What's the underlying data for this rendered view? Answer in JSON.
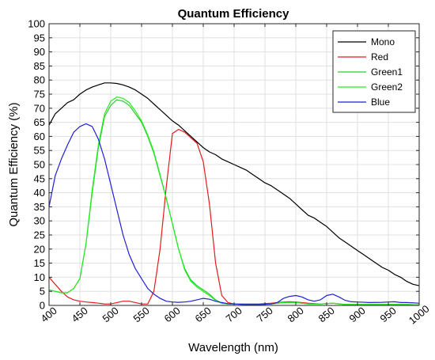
{
  "chart_data": {
    "type": "line",
    "title": "Quantum Efficiency",
    "xlabel": "Wavelength (nm)",
    "ylabel": "Quantum Efficiency (%)",
    "xlim": [
      400,
      1000
    ],
    "ylim": [
      0,
      100
    ],
    "xticks": [
      400,
      450,
      500,
      550,
      600,
      650,
      700,
      750,
      800,
      850,
      900,
      950,
      1000
    ],
    "yticks": [
      0,
      5,
      10,
      15,
      20,
      25,
      30,
      35,
      40,
      45,
      50,
      55,
      60,
      65,
      70,
      75,
      80,
      85,
      90,
      95,
      100
    ],
    "grid": true,
    "legend_position": "top-right",
    "series": [
      {
        "name": "Mono",
        "color": "#000000",
        "points": [
          [
            400,
            64
          ],
          [
            410,
            68
          ],
          [
            420,
            70
          ],
          [
            430,
            72
          ],
          [
            440,
            73
          ],
          [
            450,
            75
          ],
          [
            460,
            76.5
          ],
          [
            470,
            77.5
          ],
          [
            480,
            78.3
          ],
          [
            490,
            79
          ],
          [
            500,
            79
          ],
          [
            510,
            78.8
          ],
          [
            520,
            78.3
          ],
          [
            530,
            77.5
          ],
          [
            540,
            76.5
          ],
          [
            550,
            75
          ],
          [
            560,
            73.5
          ],
          [
            570,
            71.5
          ],
          [
            580,
            69.5
          ],
          [
            590,
            67.5
          ],
          [
            600,
            65.5
          ],
          [
            610,
            64
          ],
          [
            620,
            62
          ],
          [
            630,
            60
          ],
          [
            640,
            58
          ],
          [
            650,
            56
          ],
          [
            660,
            54.5
          ],
          [
            670,
            53.5
          ],
          [
            680,
            52
          ],
          [
            690,
            51
          ],
          [
            700,
            50
          ],
          [
            710,
            49
          ],
          [
            720,
            48
          ],
          [
            730,
            46.5
          ],
          [
            740,
            45
          ],
          [
            750,
            43.5
          ],
          [
            760,
            42.5
          ],
          [
            770,
            41
          ],
          [
            780,
            39.5
          ],
          [
            790,
            38
          ],
          [
            800,
            36
          ],
          [
            810,
            34
          ],
          [
            820,
            32
          ],
          [
            830,
            31
          ],
          [
            840,
            29.5
          ],
          [
            850,
            28
          ],
          [
            860,
            26
          ],
          [
            870,
            24
          ],
          [
            880,
            22.5
          ],
          [
            890,
            21
          ],
          [
            900,
            19.5
          ],
          [
            910,
            18
          ],
          [
            920,
            16.5
          ],
          [
            930,
            15
          ],
          [
            940,
            13.5
          ],
          [
            950,
            12.5
          ],
          [
            960,
            11
          ],
          [
            970,
            10
          ],
          [
            980,
            8.5
          ],
          [
            990,
            7.5
          ],
          [
            1000,
            7
          ]
        ]
      },
      {
        "name": "Red",
        "color": "#e41a1c",
        "points": [
          [
            400,
            10
          ],
          [
            410,
            7.5
          ],
          [
            420,
            5
          ],
          [
            430,
            3
          ],
          [
            440,
            2
          ],
          [
            450,
            1.5
          ],
          [
            460,
            1.2
          ],
          [
            470,
            1
          ],
          [
            480,
            0.8
          ],
          [
            490,
            0.5
          ],
          [
            500,
            0.5
          ],
          [
            510,
            1
          ],
          [
            520,
            1.5
          ],
          [
            530,
            1.5
          ],
          [
            540,
            1
          ],
          [
            550,
            0.5
          ],
          [
            560,
            0.5
          ],
          [
            570,
            5
          ],
          [
            580,
            20
          ],
          [
            590,
            42
          ],
          [
            600,
            61
          ],
          [
            610,
            62.5
          ],
          [
            620,
            61.5
          ],
          [
            630,
            59.5
          ],
          [
            640,
            57.5
          ],
          [
            650,
            51
          ],
          [
            660,
            36
          ],
          [
            670,
            15
          ],
          [
            680,
            3.5
          ],
          [
            690,
            1
          ],
          [
            700,
            0.5
          ],
          [
            720,
            0.5
          ],
          [
            740,
            0.5
          ],
          [
            760,
            0.8
          ],
          [
            780,
            1.2
          ],
          [
            790,
            1.3
          ],
          [
            800,
            1.2
          ],
          [
            820,
            0.8
          ],
          [
            840,
            0.5
          ],
          [
            860,
            0.8
          ],
          [
            870,
            0.5
          ],
          [
            880,
            0.3
          ],
          [
            900,
            0.3
          ],
          [
            920,
            0.3
          ],
          [
            940,
            0.3
          ],
          [
            960,
            0.3
          ],
          [
            980,
            0.3
          ],
          [
            1000,
            0.2
          ]
        ]
      },
      {
        "name": "Green1",
        "color": "#2ecc2e",
        "points": [
          [
            400,
            5.5
          ],
          [
            410,
            5
          ],
          [
            420,
            4.5
          ],
          [
            430,
            4.5
          ],
          [
            440,
            6
          ],
          [
            450,
            9.5
          ],
          [
            460,
            22
          ],
          [
            470,
            40
          ],
          [
            480,
            56
          ],
          [
            490,
            67
          ],
          [
            500,
            71
          ],
          [
            510,
            73
          ],
          [
            520,
            72.5
          ],
          [
            530,
            71
          ],
          [
            540,
            68
          ],
          [
            550,
            65
          ],
          [
            560,
            60
          ],
          [
            570,
            54
          ],
          [
            580,
            46
          ],
          [
            590,
            38
          ],
          [
            600,
            29
          ],
          [
            610,
            20
          ],
          [
            620,
            13
          ],
          [
            630,
            9
          ],
          [
            640,
            7
          ],
          [
            650,
            5.5
          ],
          [
            660,
            4
          ],
          [
            670,
            2
          ],
          [
            680,
            0.8
          ],
          [
            690,
            0.5
          ],
          [
            700,
            0.5
          ],
          [
            720,
            0.3
          ],
          [
            740,
            0.3
          ],
          [
            760,
            0.5
          ],
          [
            780,
            1
          ],
          [
            790,
            1
          ],
          [
            800,
            1
          ],
          [
            820,
            0.5
          ],
          [
            840,
            0.5
          ],
          [
            860,
            0.8
          ],
          [
            880,
            0.3
          ],
          [
            900,
            0.3
          ],
          [
            920,
            0.3
          ],
          [
            940,
            0.3
          ],
          [
            960,
            0.3
          ],
          [
            980,
            0.3
          ],
          [
            1000,
            0.2
          ]
        ]
      },
      {
        "name": "Green2",
        "color": "#22ee22",
        "points": [
          [
            400,
            5.5
          ],
          [
            410,
            5
          ],
          [
            420,
            4.5
          ],
          [
            430,
            4.5
          ],
          [
            440,
            6
          ],
          [
            450,
            9.5
          ],
          [
            460,
            22
          ],
          [
            470,
            41
          ],
          [
            480,
            57
          ],
          [
            490,
            68
          ],
          [
            500,
            72.5
          ],
          [
            510,
            74
          ],
          [
            520,
            73.5
          ],
          [
            530,
            72
          ],
          [
            540,
            69
          ],
          [
            550,
            65.5
          ],
          [
            560,
            60.5
          ],
          [
            570,
            54.5
          ],
          [
            580,
            46.5
          ],
          [
            590,
            38
          ],
          [
            600,
            29
          ],
          [
            610,
            20
          ],
          [
            620,
            12.5
          ],
          [
            630,
            8.5
          ],
          [
            640,
            6.5
          ],
          [
            650,
            5
          ],
          [
            660,
            3.5
          ],
          [
            670,
            1.8
          ],
          [
            680,
            0.7
          ],
          [
            690,
            0.5
          ],
          [
            700,
            0.5
          ],
          [
            720,
            0.3
          ],
          [
            740,
            0.3
          ],
          [
            760,
            0.5
          ],
          [
            780,
            1
          ],
          [
            790,
            1
          ],
          [
            800,
            1
          ],
          [
            820,
            0.5
          ],
          [
            840,
            0.5
          ],
          [
            860,
            0.8
          ],
          [
            880,
            0.3
          ],
          [
            900,
            0.3
          ],
          [
            920,
            0.3
          ],
          [
            940,
            0.3
          ],
          [
            960,
            0.3
          ],
          [
            980,
            0.3
          ],
          [
            1000,
            0.2
          ]
        ]
      },
      {
        "name": "Blue",
        "color": "#1f1fd6",
        "points": [
          [
            400,
            35
          ],
          [
            410,
            46
          ],
          [
            420,
            52
          ],
          [
            430,
            57
          ],
          [
            440,
            61.5
          ],
          [
            450,
            63.5
          ],
          [
            460,
            64.5
          ],
          [
            470,
            63.5
          ],
          [
            480,
            59
          ],
          [
            490,
            52
          ],
          [
            500,
            43
          ],
          [
            510,
            34
          ],
          [
            520,
            25
          ],
          [
            530,
            18
          ],
          [
            540,
            13
          ],
          [
            550,
            9.5
          ],
          [
            560,
            6
          ],
          [
            570,
            4
          ],
          [
            580,
            2.5
          ],
          [
            590,
            1.5
          ],
          [
            600,
            1.2
          ],
          [
            610,
            1.1
          ],
          [
            620,
            1.2
          ],
          [
            630,
            1.5
          ],
          [
            640,
            2
          ],
          [
            650,
            2.5
          ],
          [
            660,
            2.2
          ],
          [
            670,
            1.5
          ],
          [
            680,
            1
          ],
          [
            690,
            0.6
          ],
          [
            700,
            0.5
          ],
          [
            710,
            0.4
          ],
          [
            720,
            0.3
          ],
          [
            740,
            0.3
          ],
          [
            760,
            0.5
          ],
          [
            770,
            1
          ],
          [
            780,
            2.5
          ],
          [
            790,
            3.2
          ],
          [
            800,
            3.5
          ],
          [
            810,
            3
          ],
          [
            820,
            2
          ],
          [
            830,
            1.5
          ],
          [
            840,
            2
          ],
          [
            850,
            3.5
          ],
          [
            860,
            4
          ],
          [
            870,
            3
          ],
          [
            880,
            1.8
          ],
          [
            890,
            1.3
          ],
          [
            900,
            1.2
          ],
          [
            920,
            1
          ],
          [
            940,
            1.1
          ],
          [
            950,
            1.2
          ],
          [
            960,
            1.3
          ],
          [
            970,
            1
          ],
          [
            980,
            1
          ],
          [
            1000,
            0.8
          ]
        ]
      }
    ]
  }
}
